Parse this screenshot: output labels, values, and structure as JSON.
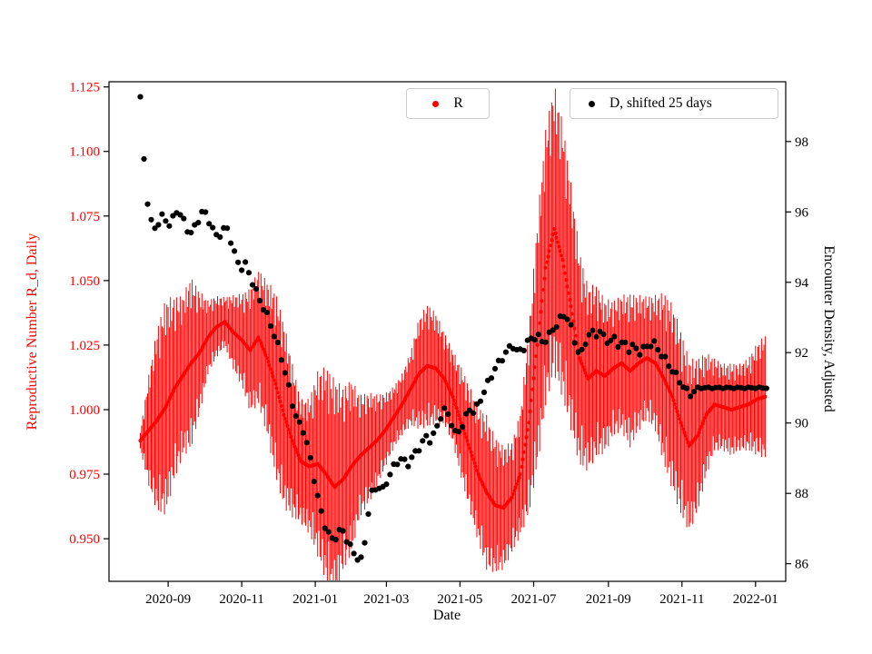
{
  "figure": {
    "background": "#ffffff"
  },
  "chart_data": {
    "type": "scatter",
    "title": "",
    "xlabel": "Date",
    "ylabel_left": "Reproductive Number R_d, Daily",
    "ylabel_right": "Encounter Density, Adjusted",
    "x_ticks": [
      "2020-09",
      "2020-11",
      "2021-01",
      "2021-03",
      "2021-05",
      "2021-07",
      "2021-09",
      "2021-11",
      "2022-01"
    ],
    "y_left_ticks": [
      0.95,
      0.975,
      1.0,
      1.025,
      1.05,
      1.075,
      1.1,
      1.125
    ],
    "y_right_ticks": [
      86,
      88,
      90,
      92,
      94,
      96,
      98
    ],
    "xlim": [
      "2020-07-14",
      "2022-01-26"
    ],
    "ylim_left": [
      0.9335,
      1.127
    ],
    "ylim_right": [
      85.5,
      99.7
    ],
    "grid": false,
    "legend": [
      {
        "label": "R",
        "color": "#ff0000"
      },
      {
        "label": "D, shifted 25 days",
        "color": "#000000"
      }
    ],
    "series": [
      {
        "name": "R",
        "axis": "left",
        "color": "#ff0000",
        "marker": "dot",
        "errorbars": true,
        "dates": [
          "2020-08-09",
          "2020-08-16",
          "2020-08-23",
          "2020-08-30",
          "2020-09-06",
          "2020-09-13",
          "2020-09-20",
          "2020-09-27",
          "2020-10-04",
          "2020-10-11",
          "2020-10-18",
          "2020-10-25",
          "2020-11-01",
          "2020-11-08",
          "2020-11-15",
          "2020-11-22",
          "2020-11-29",
          "2020-12-06",
          "2020-12-13",
          "2020-12-20",
          "2020-12-27",
          "2021-01-03",
          "2021-01-10",
          "2021-01-17",
          "2021-01-24",
          "2021-01-31",
          "2021-02-07",
          "2021-02-14",
          "2021-02-21",
          "2021-02-28",
          "2021-03-07",
          "2021-03-14",
          "2021-03-21",
          "2021-03-28",
          "2021-04-04",
          "2021-04-11",
          "2021-04-18",
          "2021-04-25",
          "2021-05-02",
          "2021-05-09",
          "2021-05-16",
          "2021-05-23",
          "2021-05-30",
          "2021-06-06",
          "2021-06-13",
          "2021-06-20",
          "2021-06-27",
          "2021-07-04",
          "2021-07-11",
          "2021-07-18",
          "2021-07-25",
          "2021-08-01",
          "2021-08-08",
          "2021-08-15",
          "2021-08-22",
          "2021-08-29",
          "2021-09-05",
          "2021-09-12",
          "2021-09-19",
          "2021-09-26",
          "2021-10-03",
          "2021-10-10",
          "2021-10-17",
          "2021-10-24",
          "2021-10-31",
          "2021-11-07",
          "2021-11-14",
          "2021-11-21",
          "2021-11-28",
          "2021-12-05",
          "2021-12-12",
          "2021-12-19",
          "2021-12-26",
          "2022-01-02",
          "2022-01-09"
        ],
        "y": [
          0.988,
          0.992,
          0.996,
          1.001,
          1.008,
          1.013,
          1.018,
          1.022,
          1.028,
          1.032,
          1.034,
          1.03,
          1.027,
          1.023,
          1.028,
          1.02,
          1.01,
          0.998,
          0.988,
          0.98,
          0.978,
          0.979,
          0.975,
          0.97,
          0.973,
          0.978,
          0.982,
          0.985,
          0.988,
          0.992,
          0.997,
          1.002,
          1.008,
          1.014,
          1.017,
          1.016,
          1.012,
          1.005,
          0.995,
          0.985,
          0.975,
          0.968,
          0.963,
          0.962,
          0.966,
          0.975,
          0.995,
          1.025,
          1.055,
          1.07,
          1.058,
          1.04,
          1.02,
          1.012,
          1.015,
          1.013,
          1.016,
          1.018,
          1.015,
          1.018,
          1.02,
          1.018,
          1.012,
          1.005,
          0.995,
          0.986,
          0.99,
          0.998,
          1.002,
          1.001,
          1.0,
          1.001,
          1.002,
          1.004,
          1.005
        ],
        "e": [
          0.003,
          0.018,
          0.03,
          0.035,
          0.03,
          0.026,
          0.028,
          0.02,
          0.012,
          0.01,
          0.008,
          0.012,
          0.015,
          0.02,
          0.022,
          0.025,
          0.03,
          0.03,
          0.025,
          0.02,
          0.022,
          0.03,
          0.035,
          0.035,
          0.03,
          0.028,
          0.02,
          0.018,
          0.015,
          0.012,
          0.01,
          0.01,
          0.012,
          0.018,
          0.02,
          0.018,
          0.015,
          0.015,
          0.018,
          0.02,
          0.022,
          0.025,
          0.022,
          0.02,
          0.018,
          0.02,
          0.03,
          0.04,
          0.045,
          0.047,
          0.045,
          0.04,
          0.035,
          0.03,
          0.028,
          0.025,
          0.022,
          0.022,
          0.025,
          0.022,
          0.02,
          0.022,
          0.028,
          0.03,
          0.03,
          0.028,
          0.025,
          0.02,
          0.015,
          0.014,
          0.015,
          0.014,
          0.015,
          0.018,
          0.02
        ]
      },
      {
        "name": "D, shifted 25 days",
        "axis": "right",
        "color": "#000000",
        "marker": "dot",
        "errorbars": false,
        "dates": [
          "2020-08-09",
          "2020-08-10",
          "2020-08-12",
          "2020-08-13",
          "2020-08-15",
          "2020-08-17",
          "2020-08-20",
          "2020-08-24",
          "2020-08-28",
          "2020-09-01",
          "2020-09-05",
          "2020-09-09",
          "2020-09-13",
          "2020-09-17",
          "2020-09-21",
          "2020-09-25",
          "2020-09-29",
          "2020-10-03",
          "2020-10-07",
          "2020-10-11",
          "2020-10-15",
          "2020-10-19",
          "2020-10-23",
          "2020-10-27",
          "2020-10-31",
          "2020-11-04",
          "2020-11-08",
          "2020-11-12",
          "2020-11-16",
          "2020-11-20",
          "2020-11-24",
          "2020-11-28",
          "2020-12-02",
          "2020-12-06",
          "2020-12-10",
          "2020-12-14",
          "2020-12-18",
          "2020-12-22",
          "2020-12-26",
          "2020-12-30",
          "2021-01-03",
          "2021-01-07",
          "2021-01-11",
          "2021-01-15",
          "2021-01-19",
          "2021-01-23",
          "2021-01-27",
          "2021-01-31",
          "2021-02-04",
          "2021-02-08",
          "2021-02-12",
          "2021-02-15",
          "2021-02-18",
          "2021-02-22",
          "2021-02-26",
          "2021-03-02",
          "2021-03-06",
          "2021-03-10",
          "2021-03-14",
          "2021-03-18",
          "2021-03-22",
          "2021-03-26",
          "2021-03-30",
          "2021-04-03",
          "2021-04-07",
          "2021-04-11",
          "2021-04-15",
          "2021-04-19",
          "2021-04-23",
          "2021-04-27",
          "2021-05-01",
          "2021-05-05",
          "2021-05-09",
          "2021-05-13",
          "2021-05-17",
          "2021-05-21",
          "2021-05-25",
          "2021-05-29",
          "2021-06-02",
          "2021-06-06",
          "2021-06-10",
          "2021-06-14",
          "2021-06-18",
          "2021-06-22",
          "2021-06-26",
          "2021-06-30",
          "2021-07-04",
          "2021-07-08",
          "2021-07-12",
          "2021-07-16",
          "2021-07-20",
          "2021-07-24",
          "2021-07-28",
          "2021-08-01",
          "2021-08-05",
          "2021-08-09",
          "2021-08-13",
          "2021-08-17",
          "2021-08-21",
          "2021-08-25",
          "2021-08-29",
          "2021-09-02",
          "2021-09-06",
          "2021-09-10",
          "2021-09-14",
          "2021-09-18",
          "2021-09-22",
          "2021-09-26",
          "2021-09-30",
          "2021-10-04",
          "2021-10-08",
          "2021-10-12",
          "2021-10-16",
          "2021-10-20",
          "2021-10-24",
          "2021-10-28",
          "2021-11-01",
          "2021-11-05",
          "2021-11-09",
          "2021-11-13",
          "2021-11-17",
          "2021-11-21",
          "2021-11-25",
          "2021-11-29",
          "2021-12-03",
          "2021-12-07",
          "2021-12-11",
          "2021-12-15",
          "2021-12-19",
          "2021-12-23",
          "2021-12-27",
          "2021-12-31",
          "2022-01-04",
          "2022-01-08",
          "2022-01-10"
        ],
        "y": [
          99.2,
          98.5,
          97.5,
          97.4,
          96.3,
          95.8,
          95.5,
          95.7,
          95.9,
          95.6,
          95.8,
          96.1,
          95.8,
          95.5,
          95.4,
          95.7,
          96.0,
          95.9,
          95.6,
          95.3,
          95.4,
          95.6,
          95.2,
          94.7,
          94.4,
          94.5,
          94.2,
          93.8,
          93.5,
          93.2,
          92.9,
          92.5,
          92.1,
          91.6,
          91.0,
          90.4,
          90.0,
          89.8,
          89.3,
          88.6,
          87.9,
          87.3,
          86.9,
          86.7,
          86.8,
          87.0,
          86.7,
          86.4,
          86.2,
          86.1,
          86.8,
          87.8,
          88.1,
          88.2,
          88.1,
          88.4,
          88.7,
          88.9,
          89.0,
          88.8,
          89.0,
          89.2,
          89.4,
          89.6,
          89.5,
          89.8,
          90.2,
          90.4,
          90.1,
          89.7,
          89.8,
          90.1,
          90.4,
          90.3,
          90.6,
          90.9,
          91.2,
          91.5,
          91.7,
          91.9,
          92.1,
          92.2,
          92.0,
          92.1,
          92.3,
          92.4,
          92.5,
          92.3,
          92.4,
          92.6,
          92.8,
          93.0,
          93.1,
          92.7,
          92.2,
          91.9,
          92.3,
          92.6,
          92.5,
          92.6,
          92.4,
          92.3,
          92.4,
          92.2,
          92.3,
          92.1,
          92.2,
          92.0,
          92.1,
          92.2,
          92.3,
          92.1,
          91.9,
          91.7,
          91.5,
          91.3,
          91.1,
          90.9,
          90.8,
          91.0,
          91.0,
          91.0,
          91.0,
          91.0,
          91.0,
          91.0,
          91.0,
          91.0,
          91.0,
          91.0,
          91.0,
          91.0,
          91.0,
          91.0,
          91.0
        ]
      }
    ]
  }
}
